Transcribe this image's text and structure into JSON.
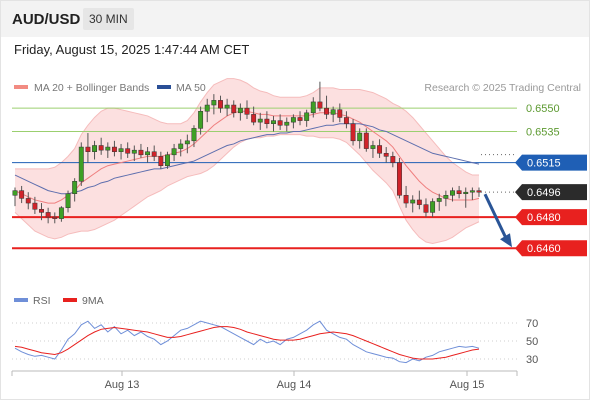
{
  "header": {
    "symbol": "AUD/USD",
    "timeframe": "30 MIN"
  },
  "datetime": "Friday, August 15, 2025 1:47:44 AM CET",
  "legend": {
    "bollinger": {
      "label": "MA 20 + Bollinger Bands",
      "color": "#f28b82"
    },
    "ma50": {
      "label": "MA 50",
      "color": "#2a4f96"
    },
    "credit": "Research © 2025 Trading Central"
  },
  "chart_data": [
    {
      "type": "line",
      "role": "price",
      "xlabel": "",
      "ylabel": "",
      "x_ticks": [
        "Aug 13",
        "Aug 14",
        "Aug 15"
      ],
      "ylim": [
        0.6437,
        0.6588
      ],
      "levels": [
        {
          "label": "0.6550",
          "value": 0.655,
          "color": "#9bcf6f",
          "style": "thin",
          "tag": false
        },
        {
          "label": "0.6535",
          "value": 0.6535,
          "color": "#9bcf6f",
          "style": "thin",
          "tag": false
        },
        {
          "label": "0.6515",
          "value": 0.6515,
          "color": "#1f5fb5",
          "style": "solid",
          "tag": true
        },
        {
          "label": "0.6480",
          "value": 0.648,
          "color": "#e8211f",
          "style": "thick",
          "tag": true
        },
        {
          "label": "0.6460",
          "value": 0.646,
          "color": "#e8211f",
          "style": "thick",
          "tag": true
        }
      ],
      "last_price": {
        "label": "0.6496",
        "value": 0.6496,
        "color": "#2b2b2b"
      },
      "forecast_arrow": {
        "direction": "down",
        "from": 0.6496,
        "to": 0.646,
        "color": "#2a5597"
      },
      "candles": [
        [
          0.6494,
          0.6499,
          0.6487,
          0.6497
        ],
        [
          0.6497,
          0.65,
          0.6489,
          0.6492
        ],
        [
          0.6492,
          0.6496,
          0.6485,
          0.6489
        ],
        [
          0.6489,
          0.6493,
          0.6482,
          0.6485
        ],
        [
          0.6485,
          0.6489,
          0.6478,
          0.6483
        ],
        [
          0.6483,
          0.6486,
          0.6476,
          0.648
        ],
        [
          0.648,
          0.6483,
          0.6476,
          0.6479
        ],
        [
          0.6479,
          0.6487,
          0.6477,
          0.6486
        ],
        [
          0.6486,
          0.6497,
          0.6483,
          0.6495
        ],
        [
          0.6495,
          0.6505,
          0.649,
          0.6503
        ],
        [
          0.6503,
          0.6528,
          0.65,
          0.6525
        ],
        [
          0.6525,
          0.6534,
          0.6515,
          0.6522
        ],
        [
          0.6522,
          0.6529,
          0.6517,
          0.6526
        ],
        [
          0.6526,
          0.6531,
          0.652,
          0.6523
        ],
        [
          0.6523,
          0.6528,
          0.6518,
          0.6525
        ],
        [
          0.6525,
          0.6529,
          0.6519,
          0.6522
        ],
        [
          0.6522,
          0.6527,
          0.6517,
          0.6524
        ],
        [
          0.6524,
          0.6528,
          0.6518,
          0.6521
        ],
        [
          0.6521,
          0.6526,
          0.6516,
          0.6523
        ],
        [
          0.6523,
          0.6527,
          0.6518,
          0.652
        ],
        [
          0.652,
          0.6525,
          0.6515,
          0.6522
        ],
        [
          0.6522,
          0.6526,
          0.6516,
          0.6519
        ],
        [
          0.6519,
          0.6522,
          0.6511,
          0.6513
        ],
        [
          0.6513,
          0.6522,
          0.6511,
          0.652
        ],
        [
          0.652,
          0.6527,
          0.6516,
          0.6524
        ],
        [
          0.6524,
          0.653,
          0.6519,
          0.6527
        ],
        [
          0.6527,
          0.6533,
          0.6521,
          0.6529
        ],
        [
          0.6529,
          0.6539,
          0.6525,
          0.6537
        ],
        [
          0.6537,
          0.6551,
          0.6533,
          0.6548
        ],
        [
          0.6548,
          0.6556,
          0.6541,
          0.6552
        ],
        [
          0.6552,
          0.6559,
          0.6546,
          0.6555
        ],
        [
          0.6555,
          0.6558,
          0.6547,
          0.655
        ],
        [
          0.655,
          0.6556,
          0.6545,
          0.6552
        ],
        [
          0.6552,
          0.6555,
          0.6544,
          0.6547
        ],
        [
          0.6547,
          0.6553,
          0.6542,
          0.655
        ],
        [
          0.655,
          0.6555,
          0.6543,
          0.6546
        ],
        [
          0.6546,
          0.6551,
          0.6539,
          0.6541
        ],
        [
          0.6541,
          0.6547,
          0.6536,
          0.6543
        ],
        [
          0.6543,
          0.6548,
          0.6537,
          0.654
        ],
        [
          0.654,
          0.6545,
          0.6535,
          0.6542
        ],
        [
          0.6542,
          0.6546,
          0.6536,
          0.6539
        ],
        [
          0.6539,
          0.6544,
          0.6535,
          0.6541
        ],
        [
          0.6541,
          0.6546,
          0.6537,
          0.6544
        ],
        [
          0.6544,
          0.6548,
          0.6539,
          0.6542
        ],
        [
          0.6542,
          0.6549,
          0.6538,
          0.6547
        ],
        [
          0.6547,
          0.6557,
          0.6544,
          0.6554
        ],
        [
          0.6554,
          0.6567,
          0.6548,
          0.655
        ],
        [
          0.655,
          0.6558,
          0.6543,
          0.6546
        ],
        [
          0.6546,
          0.6551,
          0.6541,
          0.6549
        ],
        [
          0.6549,
          0.6553,
          0.6541,
          0.6544
        ],
        [
          0.6544,
          0.6548,
          0.6537,
          0.654
        ],
        [
          0.654,
          0.6543,
          0.6526,
          0.6529
        ],
        [
          0.6529,
          0.6537,
          0.6524,
          0.6534
        ],
        [
          0.6534,
          0.6537,
          0.6522,
          0.6524
        ],
        [
          0.6524,
          0.6529,
          0.6518,
          0.6526
        ],
        [
          0.6526,
          0.653,
          0.6518,
          0.6521
        ],
        [
          0.6521,
          0.6525,
          0.6515,
          0.6519
        ],
        [
          0.6519,
          0.6522,
          0.6512,
          0.6515
        ],
        [
          0.6515,
          0.6518,
          0.6492,
          0.6494
        ],
        [
          0.6494,
          0.65,
          0.6486,
          0.6489
        ],
        [
          0.6489,
          0.6494,
          0.6483,
          0.6491
        ],
        [
          0.6491,
          0.6497,
          0.6485,
          0.6488
        ],
        [
          0.6488,
          0.6492,
          0.648,
          0.6483
        ],
        [
          0.6483,
          0.6492,
          0.648,
          0.649
        ],
        [
          0.649,
          0.6495,
          0.6484,
          0.6492
        ],
        [
          0.6492,
          0.6497,
          0.6487,
          0.6494
        ],
        [
          0.6494,
          0.6499,
          0.649,
          0.6497
        ],
        [
          0.6497,
          0.65,
          0.6492,
          0.6495
        ],
        [
          0.6495,
          0.6499,
          0.6486,
          0.6496
        ],
        [
          0.6496,
          0.6499,
          0.6491,
          0.6497
        ],
        [
          0.6497,
          0.6499,
          0.6493,
          0.6496
        ]
      ],
      "ma20": [
        0.6497,
        0.6495,
        0.6493,
        0.6491,
        0.649,
        0.6489,
        0.6489,
        0.6491,
        0.6494,
        0.6497,
        0.6502,
        0.6505,
        0.6508,
        0.6511,
        0.6513,
        0.6514,
        0.6515,
        0.6516,
        0.6517,
        0.6518,
        0.6519,
        0.6519,
        0.6519,
        0.652,
        0.6521,
        0.6522,
        0.6524,
        0.6527,
        0.6531,
        0.6535,
        0.6539,
        0.6542,
        0.6545,
        0.6547,
        0.6548,
        0.6548,
        0.6547,
        0.6546,
        0.6546,
        0.6545,
        0.6545,
        0.6545,
        0.6545,
        0.6545,
        0.6545,
        0.6546,
        0.6547,
        0.6547,
        0.6547,
        0.6546,
        0.6545,
        0.6543,
        0.6541,
        0.6538,
        0.6535,
        0.6532,
        0.6529,
        0.6525,
        0.6519,
        0.6513,
        0.6508,
        0.6503,
        0.6499,
        0.6496,
        0.6494,
        0.6492,
        0.6491,
        0.6491,
        0.6491,
        0.6491,
        0.6492
      ],
      "bb_width": [
        0.0014,
        0.0016,
        0.0018,
        0.002,
        0.0021,
        0.0022,
        0.0023,
        0.0024,
        0.0025,
        0.0027,
        0.0031,
        0.0034,
        0.0036,
        0.0037,
        0.0037,
        0.0036,
        0.0034,
        0.0032,
        0.003,
        0.0028,
        0.0026,
        0.0024,
        0.0022,
        0.002,
        0.0019,
        0.0018,
        0.0018,
        0.002,
        0.0023,
        0.0025,
        0.0026,
        0.0025,
        0.0024,
        0.0022,
        0.002,
        0.0018,
        0.0016,
        0.0015,
        0.0014,
        0.0013,
        0.0012,
        0.0012,
        0.0012,
        0.0012,
        0.0013,
        0.0014,
        0.0016,
        0.0016,
        0.0016,
        0.0016,
        0.0017,
        0.0019,
        0.0021,
        0.0023,
        0.0025,
        0.0026,
        0.0027,
        0.0028,
        0.0032,
        0.0035,
        0.0036,
        0.0036,
        0.0035,
        0.0033,
        0.003,
        0.0027,
        0.0024,
        0.0021,
        0.0018,
        0.0016,
        0.0015
      ],
      "ma50": [
        0.6507,
        0.6505,
        0.6503,
        0.6501,
        0.6499,
        0.6497,
        0.6496,
        0.6495,
        0.6495,
        0.6496,
        0.6497,
        0.6499,
        0.65,
        0.6502,
        0.6503,
        0.6505,
        0.6506,
        0.6507,
        0.6508,
        0.6509,
        0.651,
        0.6511,
        0.6511,
        0.6512,
        0.6513,
        0.6514,
        0.6515,
        0.6516,
        0.6518,
        0.652,
        0.6522,
        0.6524,
        0.6526,
        0.6527,
        0.6529,
        0.653,
        0.6531,
        0.6532,
        0.6533,
        0.6533,
        0.6534,
        0.6534,
        0.6535,
        0.6535,
        0.6536,
        0.6537,
        0.6538,
        0.6539,
        0.6539,
        0.654,
        0.654,
        0.654,
        0.654,
        0.6539,
        0.6538,
        0.6536,
        0.6535,
        0.6533,
        0.6531,
        0.6529,
        0.6527,
        0.6525,
        0.6523,
        0.6521,
        0.652,
        0.6519,
        0.6518,
        0.6517,
        0.6516,
        0.6515,
        0.6514
      ]
    },
    {
      "type": "line",
      "role": "rsi",
      "legend": [
        {
          "name": "RSI",
          "color": "#6f8fd8"
        },
        {
          "name": "9MA",
          "color": "#e8211f"
        }
      ],
      "ylim": [
        20,
        80
      ],
      "y_ticks": [
        70,
        50,
        30
      ],
      "rsi": [
        42,
        38,
        35,
        33,
        34,
        32,
        30,
        40,
        52,
        58,
        68,
        72,
        64,
        68,
        60,
        66,
        58,
        62,
        56,
        60,
        55,
        52,
        46,
        50,
        56,
        62,
        64,
        68,
        72,
        70,
        68,
        66,
        62,
        58,
        54,
        50,
        46,
        52,
        48,
        50,
        46,
        52,
        54,
        58,
        62,
        68,
        72,
        62,
        58,
        54,
        52,
        46,
        42,
        38,
        36,
        34,
        32,
        31,
        27,
        26,
        30,
        28,
        32,
        34,
        38,
        40,
        42,
        44,
        43,
        44,
        42
      ],
      "ma9": [
        44,
        43,
        41,
        39,
        37,
        36,
        35,
        37,
        41,
        46,
        51,
        56,
        60,
        63,
        64,
        65,
        64,
        63,
        62,
        61,
        60,
        58,
        56,
        54,
        54,
        55,
        57,
        59,
        61,
        63,
        65,
        66,
        66,
        65,
        63,
        60,
        58,
        56,
        54,
        52,
        51,
        51,
        51,
        52,
        54,
        56,
        58,
        59,
        60,
        59,
        58,
        56,
        53,
        50,
        47,
        44,
        41,
        38,
        35,
        33,
        31,
        30,
        30,
        30,
        31,
        32,
        34,
        36,
        38,
        40,
        41
      ]
    }
  ]
}
